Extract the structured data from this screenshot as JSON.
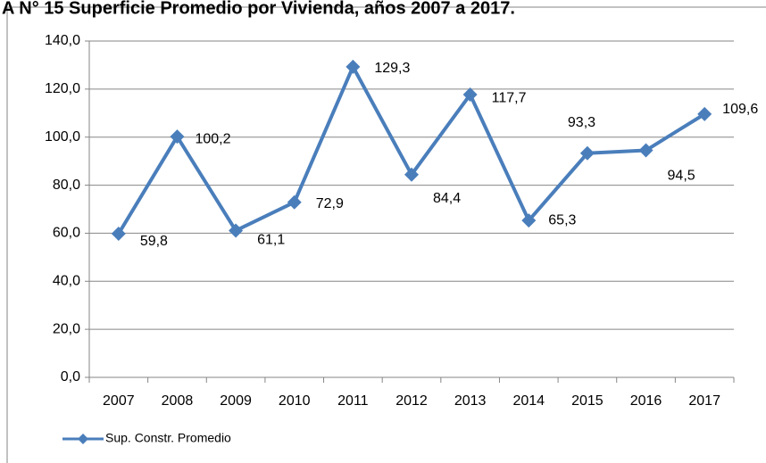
{
  "chart_data": {
    "type": "line",
    "title": "A N° 15 Superficie Promedio por Vivienda, años 2007 a 2017.",
    "categories": [
      "2007",
      "2008",
      "2009",
      "2010",
      "2011",
      "2012",
      "2013",
      "2014",
      "2015",
      "2016",
      "2017"
    ],
    "series": [
      {
        "name": "Sup. Constr. Promedio",
        "color": "#4a7ebb",
        "values": [
          59.8,
          100.2,
          61.1,
          72.9,
          129.3,
          84.4,
          117.7,
          65.3,
          93.3,
          94.5,
          109.6
        ],
        "value_labels": [
          "59,8",
          "100,2",
          "61,1",
          "72,9",
          "129,3",
          "84,4",
          "117,7",
          "65,3",
          "93,3",
          "94,5",
          "109,6"
        ]
      }
    ],
    "ylim": [
      0,
      140
    ],
    "yticks": [
      {
        "value": 0,
        "label": "0,0"
      },
      {
        "value": 20,
        "label": "20,0"
      },
      {
        "value": 40,
        "label": "40,0"
      },
      {
        "value": 60,
        "label": "60,0"
      },
      {
        "value": 80,
        "label": "80,0"
      },
      {
        "value": 100,
        "label": "100,0"
      },
      {
        "value": 120,
        "label": "120,0"
      },
      {
        "value": 140,
        "label": "140,0"
      }
    ],
    "grid": true,
    "legend": "bottom-left"
  }
}
